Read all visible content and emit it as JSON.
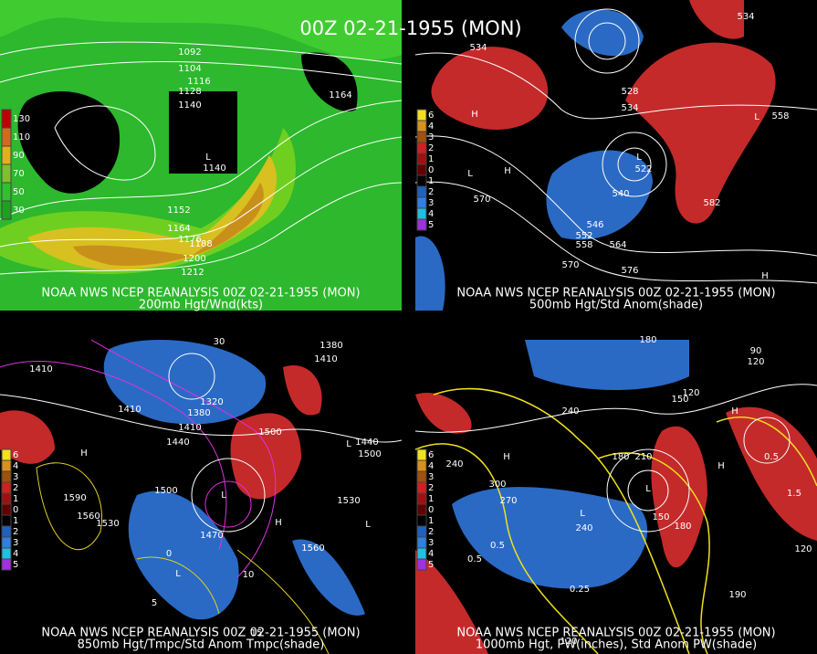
{
  "title": "00Z 02-21-1955 (MON)",
  "panels": [
    {
      "source": "NOAA NWS NCEP REANALYSIS 00Z 02-21-1955 (MON)",
      "caption": "200mb Hgt/Wnd(kts)",
      "legend": [
        130,
        110,
        90,
        70,
        50,
        30
      ],
      "labels": [
        "1092",
        "1104",
        "1116",
        "1128",
        "1140",
        "1152",
        "1164",
        "1176",
        "1188",
        "1200",
        "1212",
        "1164",
        "L",
        "1140"
      ]
    },
    {
      "source": "NOAA NWS NCEP REANALYSIS 00Z 02-21-1955 (MON)",
      "caption": "500mb Hgt/Std Anom(shade)",
      "legend": [
        6,
        4,
        3,
        2,
        1,
        0,
        1,
        2,
        3,
        4,
        5
      ],
      "labels": [
        "534",
        "534",
        "528",
        "534",
        "522",
        "540",
        "546",
        "552",
        "558",
        "564",
        "570",
        "570",
        "576",
        "582",
        "558",
        "H",
        "L",
        "H",
        "L",
        "L",
        "H"
      ]
    },
    {
      "source": "NOAA NWS NCEP REANALYSIS 00Z 02-21-1955 (MON)",
      "caption": "850mb Hgt/Tmpc/Std Anom Tmpc(shade)",
      "legend": [
        6,
        4,
        3,
        2,
        1,
        0,
        1,
        2,
        3,
        4,
        5
      ],
      "labels": [
        "1410",
        "1410",
        "1380",
        "1410",
        "1320",
        "1440",
        "1500",
        "1380",
        "1410",
        "1440",
        "1500",
        "1470",
        "1500",
        "1530",
        "1560",
        "1590",
        "1560",
        "1530",
        "H",
        "L",
        "L",
        "H",
        "L",
        "L",
        "30",
        "0",
        "5",
        "10",
        "15"
      ]
    },
    {
      "source": "NOAA NWS NCEP REANALYSIS 00Z 02-21-1955 (MON)",
      "caption": "1000mb Hgt, PW(inches), Std Anom PW(shade)",
      "legend": [
        6,
        4,
        3,
        2,
        1,
        0,
        1,
        2,
        3,
        4,
        5
      ],
      "labels": [
        "180",
        "90",
        "120",
        "150",
        "120",
        "240",
        "210",
        "180",
        "240",
        "300",
        "270",
        "240",
        "150",
        "180",
        "190",
        "120",
        "120",
        "0.5",
        "0.5",
        "0.25",
        "1.5",
        "0.5",
        "L",
        "L",
        "H",
        "H",
        "H"
      ]
    }
  ]
}
